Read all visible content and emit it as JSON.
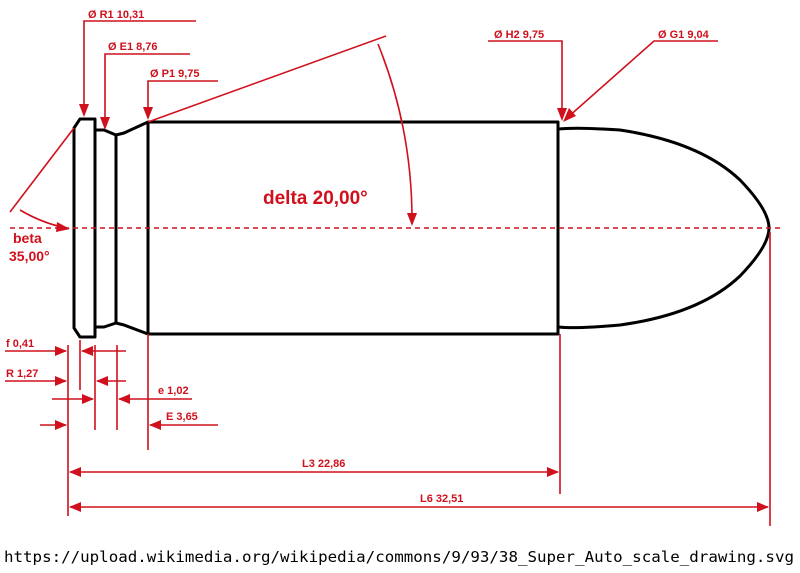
{
  "labels": {
    "r1": "Ø R1  10,31",
    "e1": "Ø E1  8,76",
    "p1": "Ø P1  9,75",
    "h2": "Ø H2  9,75",
    "g1": "Ø G1  9,04",
    "delta": "delta  20,00°",
    "beta_name": "beta",
    "beta_value": "35,00°",
    "f": "f  0,41",
    "r": "R  1,27",
    "e": "e  1,02",
    "E": "E  3,65",
    "l3": "L3  22,86",
    "l6": "L6  32,51"
  },
  "source": "https://upload.wikimedia.org/wikipedia/commons/9/93/38_Super_Auto_scale_drawing.svg",
  "colors": {
    "dimension": "#d0101c",
    "outline": "#000000",
    "background": "#ffffff"
  }
}
